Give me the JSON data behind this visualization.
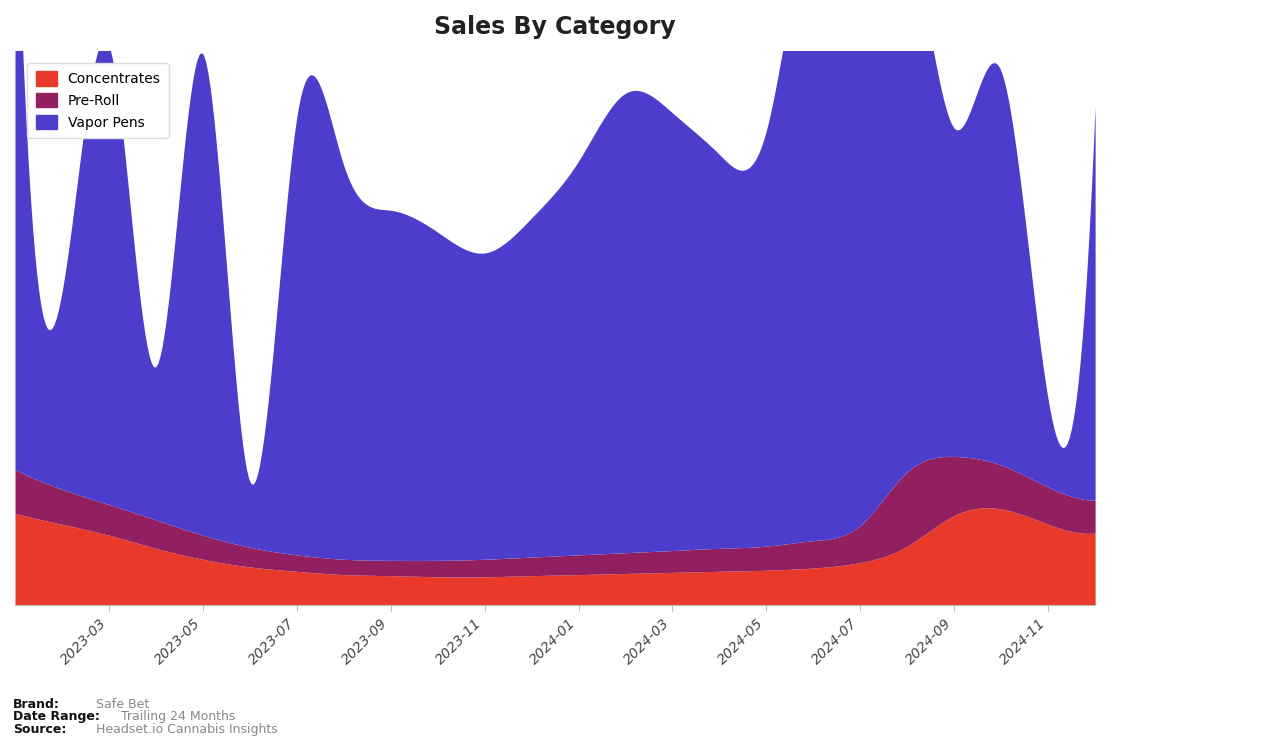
{
  "title": "Sales By Category",
  "categories": [
    "Concentrates",
    "Pre-Roll",
    "Vapor Pens"
  ],
  "colors": {
    "concentrates": "#e8392a",
    "pre_roll": "#922060",
    "vapor_pens": "#4d3dcc"
  },
  "x_labels": [
    "2023-03",
    "2023-05",
    "2023-07",
    "2023-09",
    "2023-11",
    "2024-01",
    "2024-03",
    "2024-05",
    "2024-07",
    "2024-09",
    "2024-11"
  ],
  "brand": "Safe Bet",
  "date_range": "Trailing 24 Months",
  "source": "Headset.io Cannabis Insights",
  "background_color": "#ffffff",
  "plot_background": "#ffffff",
  "concentrates": [
    420,
    370,
    320,
    260,
    210,
    175,
    155,
    140,
    135,
    130,
    130,
    135,
    140,
    145,
    150,
    155,
    160,
    170,
    195,
    270,
    410,
    440,
    370,
    330
  ],
  "pre_roll": [
    200,
    160,
    140,
    130,
    110,
    90,
    75,
    70,
    70,
    75,
    80,
    85,
    90,
    95,
    100,
    105,
    110,
    125,
    170,
    340,
    270,
    200,
    170,
    150
  ],
  "vapor_pens": [
    2900,
    900,
    2100,
    700,
    2200,
    300,
    2000,
    1800,
    1600,
    1500,
    1400,
    1550,
    1800,
    2100,
    2000,
    1800,
    1900,
    2800,
    2200,
    2400,
    1500,
    1800,
    400,
    1800
  ]
}
